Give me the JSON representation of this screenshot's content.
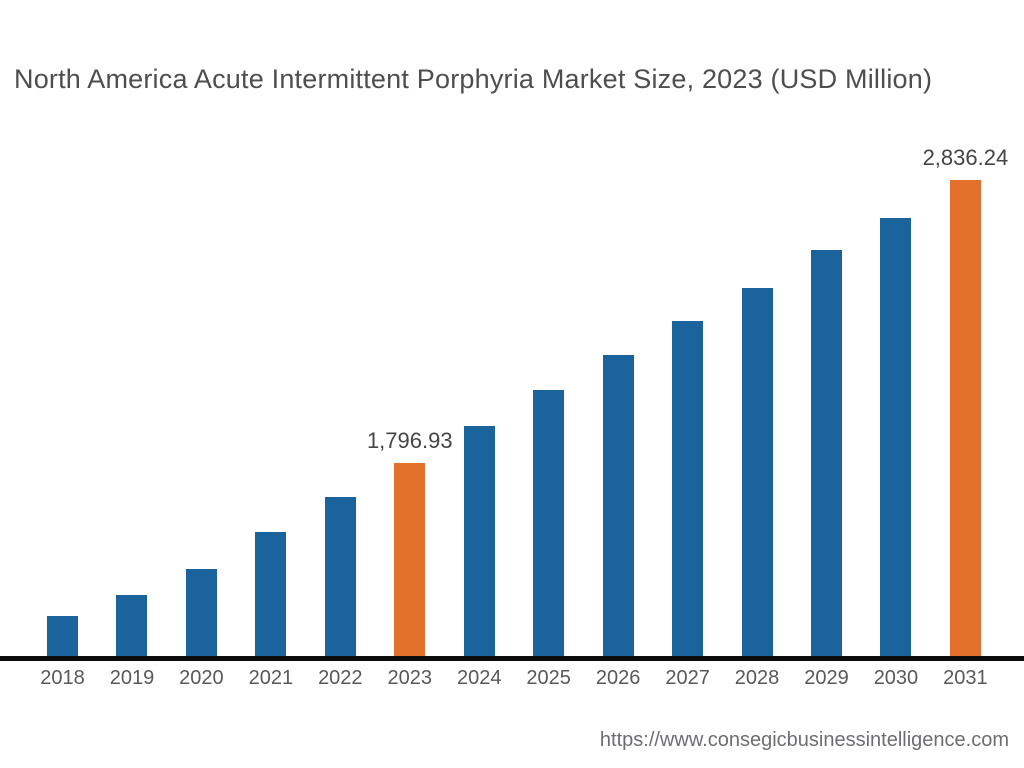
{
  "chart_data": {
    "type": "bar",
    "title": "North America Acute Intermittent Porphyria Market Size, 2023 (USD Million)",
    "unit": "USD Million",
    "categories": [
      "2018",
      "2019",
      "2020",
      "2021",
      "2022",
      "2023",
      "2024",
      "2025",
      "2026",
      "2027",
      "2028",
      "2029",
      "2030",
      "2031"
    ],
    "values": [
      1235,
      1312,
      1408,
      1543,
      1672,
      1796.93,
      1933,
      2065,
      2193,
      2318,
      2439,
      2579,
      2697,
      2836.24
    ],
    "data_labels": [
      "",
      "",
      "",
      "",
      "",
      "1,796.93",
      "",
      "",
      "",
      "",
      "",
      "",
      "",
      "2,836.24"
    ],
    "highlight_categories": [
      "2023",
      "2031"
    ],
    "ylim": [
      1088,
      2851
    ],
    "grid": false,
    "legend": null,
    "xlabel": "",
    "ylabel": "",
    "colors": {
      "bar_default": "#1A639C",
      "bar_highlight": "#E3702B",
      "axis_line": "#0B0B0B",
      "title_text": "#4E4E50",
      "value_label_text": "#454547",
      "tick_text": "#58595B",
      "footer_text": "#6D6E71"
    }
  },
  "footer": {
    "url_text": "https://www.consegicbusinessintelligence.com"
  }
}
